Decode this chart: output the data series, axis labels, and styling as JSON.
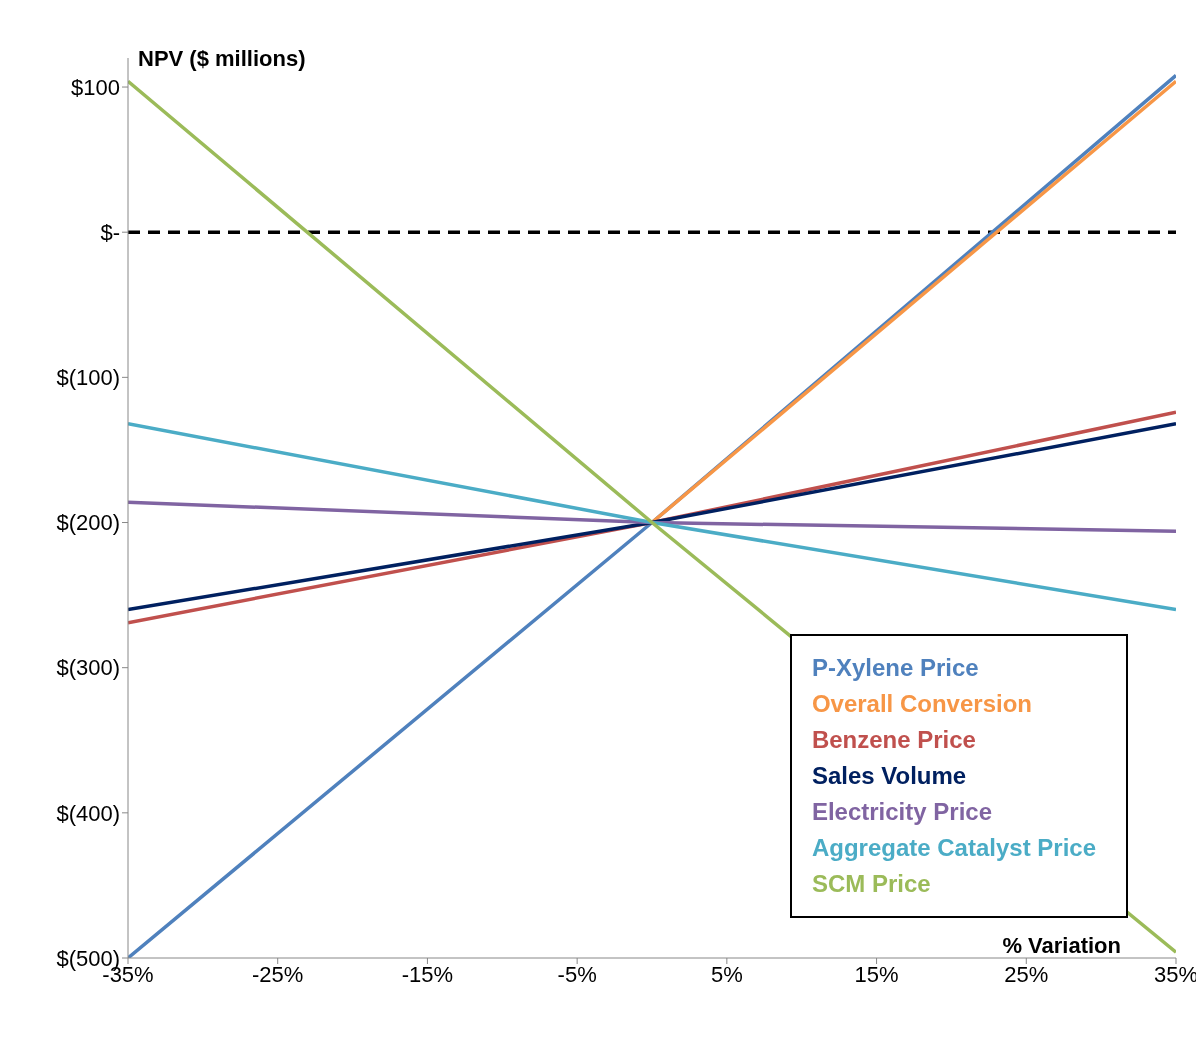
{
  "chart_data": {
    "type": "line",
    "xlabel": "% Variation",
    "ylabel": "NPV ($ millions)",
    "x": [
      -35,
      0,
      35
    ],
    "series": [
      {
        "name": "P-Xylene Price",
        "color": "#4f81bd",
        "values": [
          -500,
          -200,
          108
        ]
      },
      {
        "name": "Overall Conversion",
        "color": "#f79646",
        "values": [
          null,
          -200,
          104
        ]
      },
      {
        "name": "Benzene Price",
        "color": "#c0504d",
        "values": [
          -269,
          -200,
          -124
        ]
      },
      {
        "name": "Sales Volume",
        "color": "#002060",
        "values": [
          -260,
          -200,
          -132
        ]
      },
      {
        "name": "Electricity Price",
        "color": "#8064a2",
        "values": [
          -186,
          -200,
          -206
        ]
      },
      {
        "name": "Aggregate Catalyst Price",
        "color": "#4bacc6",
        "values": [
          -132,
          -200,
          -260
        ]
      },
      {
        "name": "SCM Price",
        "color": "#9bbb59",
        "values": [
          104,
          -200,
          -496
        ]
      }
    ],
    "xlim": [
      -35,
      35
    ],
    "xticks": [
      {
        "value": -35,
        "label": "-35%"
      },
      {
        "value": -25,
        "label": "-25%"
      },
      {
        "value": -15,
        "label": "-15%"
      },
      {
        "value": -5,
        "label": "-5%"
      },
      {
        "value": 5,
        "label": "5%"
      },
      {
        "value": 15,
        "label": "15%"
      },
      {
        "value": 25,
        "label": "25%"
      },
      {
        "value": 35,
        "label": "35%"
      }
    ],
    "ylim": [
      -500,
      120
    ],
    "yticks": [
      {
        "value": -500,
        "label": "$(500)"
      },
      {
        "value": -400,
        "label": "$(400)"
      },
      {
        "value": -300,
        "label": "$(300)"
      },
      {
        "value": -200,
        "label": "$(200)"
      },
      {
        "value": -100,
        "label": "$(100)"
      },
      {
        "value": 0,
        "label": "$-"
      },
      {
        "value": 100,
        "label": "$100"
      }
    ],
    "ref_lines": [
      {
        "axis": "y",
        "value": 0,
        "color": "#000000",
        "line_style": "dashed"
      }
    ],
    "grid": false,
    "legend": "bottom right",
    "marker": "none",
    "line_style": "solid"
  }
}
